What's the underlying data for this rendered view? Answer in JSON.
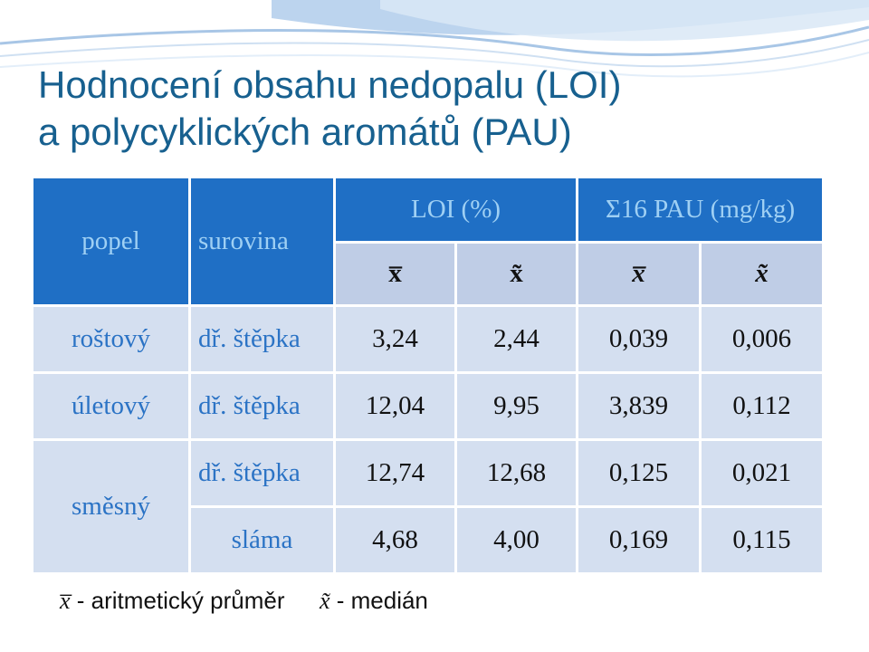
{
  "title": {
    "line1": "Hodnocení obsahu nedopalu (LOI)",
    "line2": "a polycyklických aromátů (PAU)"
  },
  "table": {
    "headers": {
      "col1": "popel",
      "col2": "surovina",
      "group1": "LOI (%)",
      "group2": "Σ16 PAU (mg/kg)",
      "sub": [
        "x̅",
        "x̃",
        "x̅",
        "x̃"
      ]
    },
    "rows": [
      {
        "popel": "roštový",
        "surovina": "dř. štěpka",
        "values": [
          "3,24",
          "2,44",
          "0,039",
          "0,006"
        ]
      },
      {
        "popel": "úletový",
        "surovina": "dř. štěpka",
        "values": [
          "12,04",
          "9,95",
          "3,839",
          "0,112"
        ]
      },
      {
        "popel": "směsný",
        "surovina": "dř. štěpka",
        "values": [
          "12,74",
          "12,68",
          "0,125",
          "0,021"
        ]
      },
      {
        "popel": "",
        "surovina": "sláma",
        "values": [
          "4,68",
          "4,00",
          "0,169",
          "0,115"
        ]
      }
    ]
  },
  "legend": {
    "mean_symbol": "x̅",
    "mean_text": "- aritmetický průměr",
    "median_symbol": "x̃",
    "median_text": "- medián"
  }
}
